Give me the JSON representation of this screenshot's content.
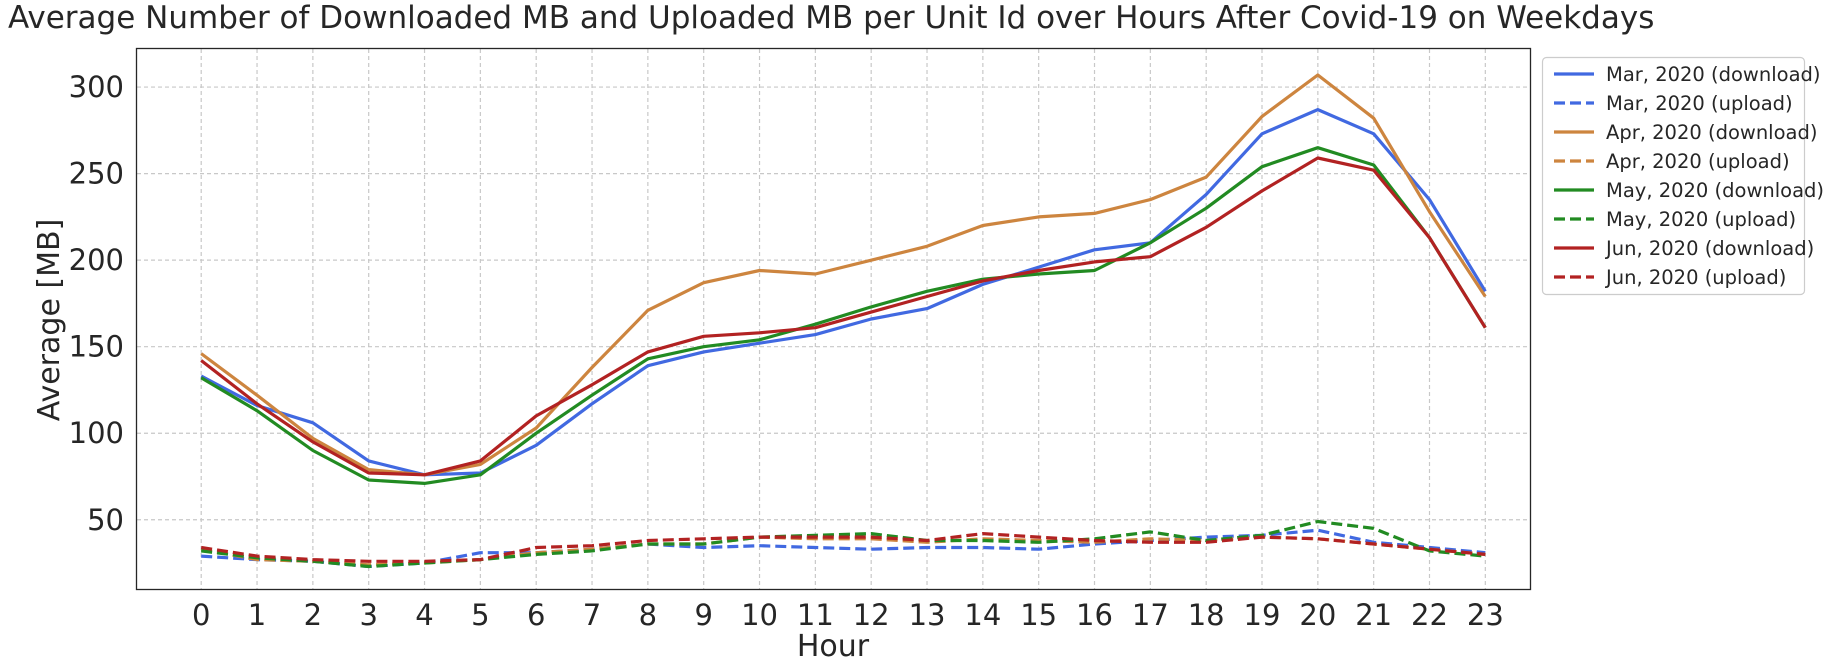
{
  "chart_data": {
    "type": "line",
    "title": "Average Number of Downloaded MB and Uploaded MB per Unit Id over Hours After Covid-19 on Weekdays",
    "xlabel": "Hour",
    "ylabel": "Average [MB]",
    "x": [
      0,
      1,
      2,
      3,
      4,
      5,
      6,
      7,
      8,
      9,
      10,
      11,
      12,
      13,
      14,
      15,
      16,
      17,
      18,
      19,
      20,
      21,
      22,
      23
    ],
    "xlim": [
      -1.15,
      23.8
    ],
    "ylim": [
      10,
      322
    ],
    "yticks": [
      50,
      100,
      150,
      200,
      250,
      300
    ],
    "grid": true,
    "legend_position": "outside-top-right",
    "series": [
      {
        "name": "Mar, 2020 (download)",
        "color": "#4169e1",
        "style": "solid",
        "values": [
          133,
          116,
          106,
          84,
          76,
          77,
          93,
          117,
          139,
          147,
          152,
          157,
          166,
          172,
          186,
          196,
          206,
          210,
          238,
          273,
          287,
          273,
          235,
          182
        ]
      },
      {
        "name": "Mar, 2020 (upload)",
        "color": "#4169e1",
        "style": "dashed",
        "values": [
          29,
          27,
          26,
          23,
          25,
          31,
          31,
          33,
          36,
          34,
          35,
          34,
          33,
          34,
          34,
          33,
          36,
          38,
          40,
          41,
          44,
          37,
          34,
          31
        ]
      },
      {
        "name": "Apr, 2020 (download)",
        "color": "#cd853f",
        "style": "solid",
        "values": [
          146,
          122,
          97,
          79,
          76,
          82,
          103,
          138,
          171,
          187,
          194,
          192,
          200,
          208,
          220,
          225,
          227,
          235,
          248,
          283,
          307,
          282,
          228,
          179
        ]
      },
      {
        "name": "Apr, 2020 (upload)",
        "color": "#cd853f",
        "style": "dashed",
        "values": [
          33,
          27,
          26,
          24,
          25,
          27,
          31,
          33,
          36,
          36,
          40,
          39,
          39,
          37,
          39,
          38,
          37,
          39,
          38,
          40,
          39,
          36,
          33,
          30
        ]
      },
      {
        "name": "May, 2020 (download)",
        "color": "#228b22",
        "style": "solid",
        "values": [
          132,
          113,
          90,
          73,
          71,
          76,
          100,
          122,
          143,
          150,
          154,
          163,
          173,
          182,
          189,
          192,
          194,
          210,
          230,
          254,
          265,
          255,
          213,
          161
        ]
      },
      {
        "name": "May, 2020 (upload)",
        "color": "#228b22",
        "style": "dashed",
        "values": [
          32,
          28,
          26,
          23,
          25,
          27,
          30,
          32,
          36,
          36,
          40,
          41,
          42,
          38,
          38,
          37,
          39,
          43,
          38,
          41,
          49,
          45,
          32,
          29
        ]
      },
      {
        "name": "Jun, 2020 (download)",
        "color": "#b22222",
        "style": "solid",
        "values": [
          142,
          117,
          95,
          77,
          76,
          84,
          110,
          128,
          147,
          156,
          158,
          161,
          170,
          179,
          188,
          194,
          199,
          202,
          219,
          240,
          259,
          252,
          213,
          161
        ]
      },
      {
        "name": "Jun, 2020 (upload)",
        "color": "#b22222",
        "style": "dashed",
        "values": [
          34,
          29,
          27,
          26,
          26,
          27,
          34,
          35,
          38,
          39,
          40,
          40,
          40,
          38,
          42,
          40,
          38,
          37,
          37,
          40,
          39,
          36,
          33,
          30
        ]
      }
    ]
  }
}
